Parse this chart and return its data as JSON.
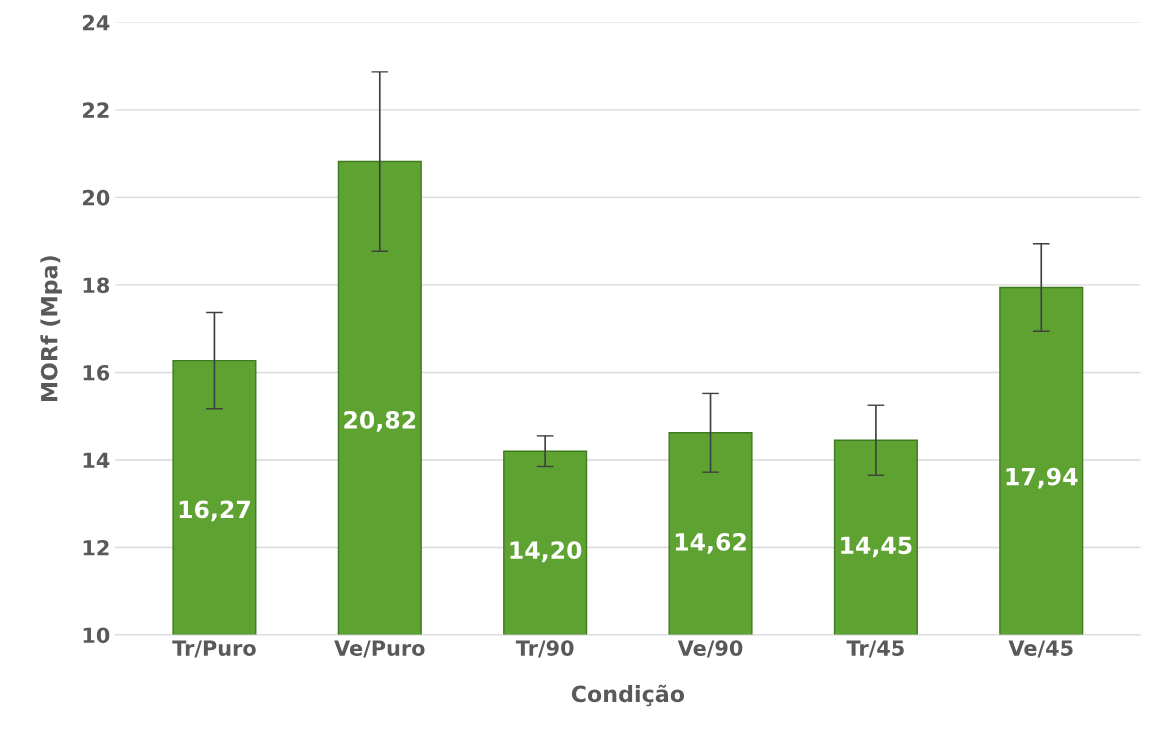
{
  "chart_data": {
    "type": "bar",
    "xlabel": "Condição",
    "ylabel": "MORf (Mpa)",
    "categories": [
      "Tr/Puro",
      "Ve/Puro",
      "Tr/90",
      "Ve/90",
      "Tr/45",
      "Ve/45"
    ],
    "values": [
      16.27,
      20.82,
      14.2,
      14.62,
      14.45,
      17.94
    ],
    "value_labels": [
      "16,27",
      "20,82",
      "14,20",
      "14,62",
      "14,45",
      "17,94"
    ],
    "errors": [
      1.1,
      2.05,
      0.35,
      0.9,
      0.8,
      1.0
    ],
    "color": "#5ea332",
    "ylim": [
      10,
      24
    ],
    "yticks": [
      10,
      12,
      14,
      16,
      18,
      20,
      22,
      24
    ],
    "grid": "y"
  }
}
